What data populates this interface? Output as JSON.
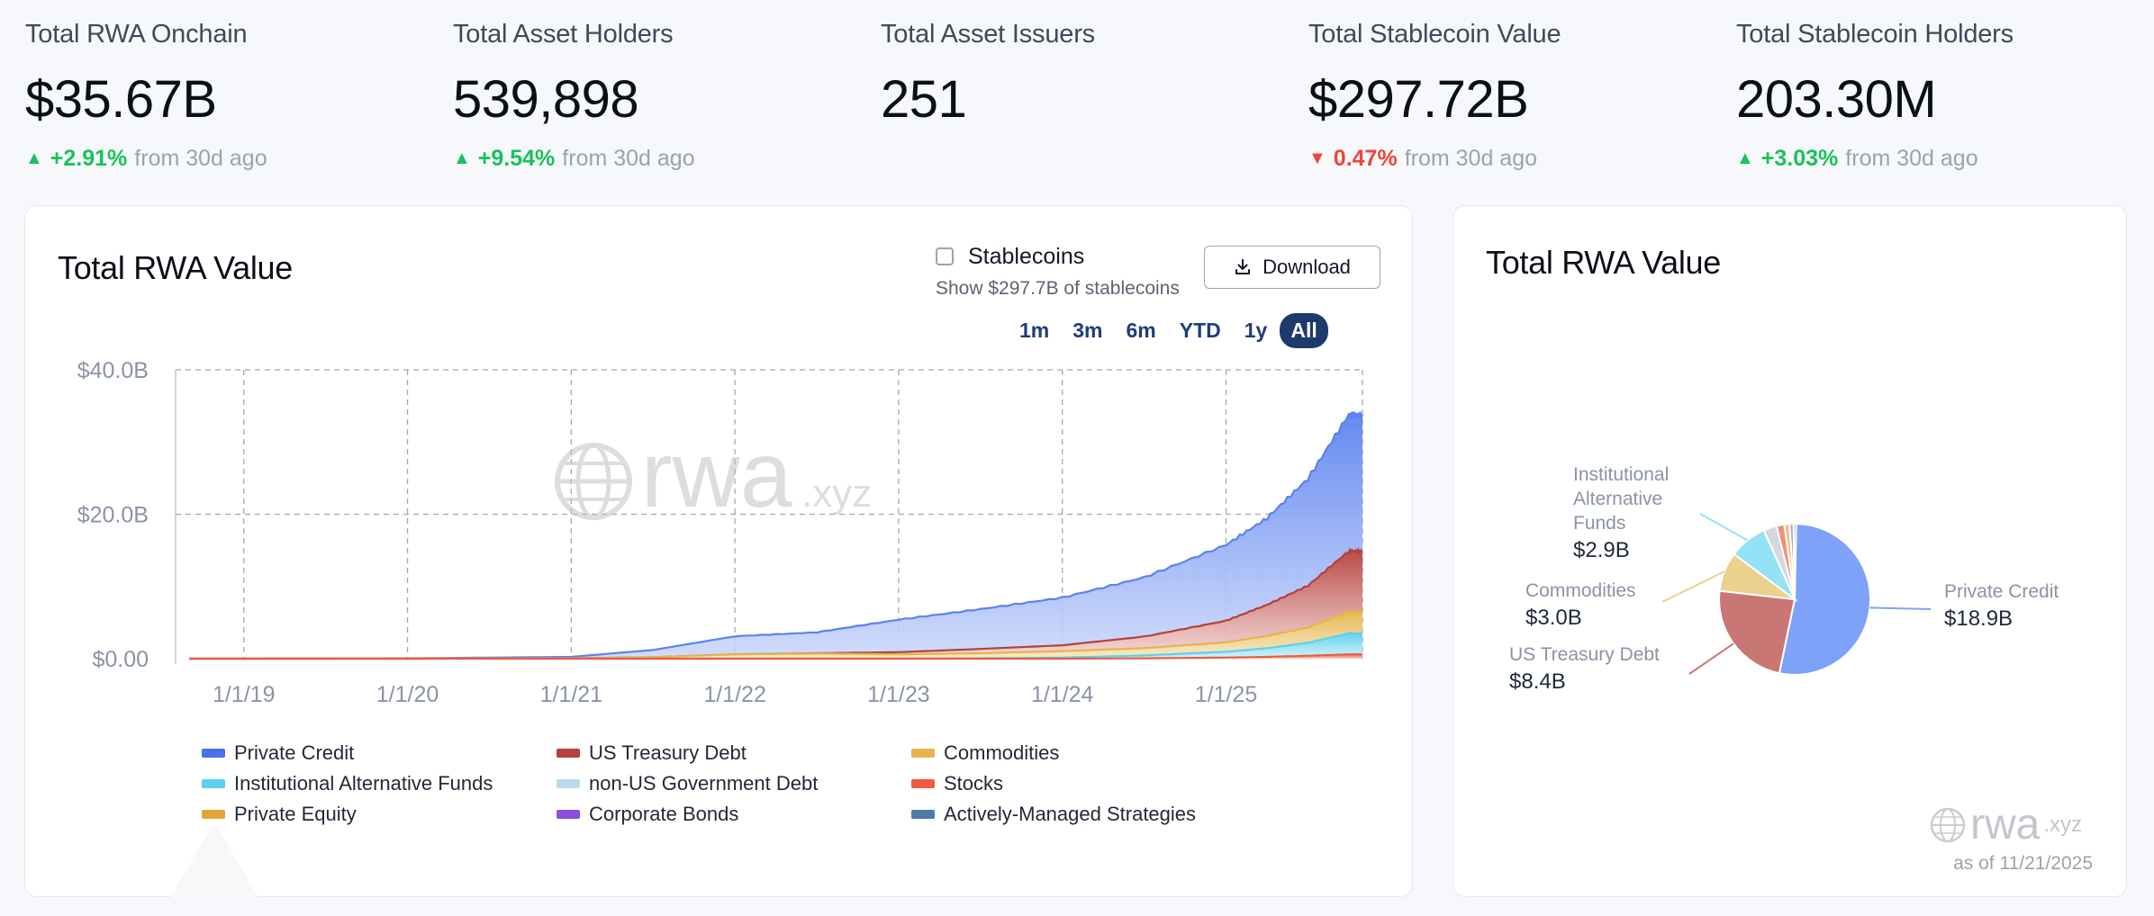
{
  "stats": [
    {
      "label": "Total RWA Onchain",
      "value": "$35.67B",
      "direction": "up",
      "change": "+2.91%",
      "suffix": "from 30d ago"
    },
    {
      "label": "Total Asset Holders",
      "value": "539,898",
      "direction": "up",
      "change": "+9.54%",
      "suffix": "from 30d ago"
    },
    {
      "label": "Total Asset Issuers",
      "value": "251",
      "direction": "",
      "change": "",
      "suffix": ""
    },
    {
      "label": "Total Stablecoin Value",
      "value": "$297.72B",
      "direction": "down",
      "change": "0.47%",
      "suffix": "from 30d ago"
    },
    {
      "label": "Total Stablecoin Holders",
      "value": "203.30M",
      "direction": "up",
      "change": "+3.03%",
      "suffix": "from 30d ago"
    }
  ],
  "colors": {
    "up": "#19c25a",
    "down": "#f04438",
    "accent": "#1e3a6d"
  },
  "main_card": {
    "title": "Total RWA Value",
    "stablecoins_label": "Stablecoins",
    "stablecoins_sub": "Show $297.7B of stablecoins",
    "stablecoins_checked": false,
    "download_label": "Download",
    "ranges": [
      "1m",
      "3m",
      "6m",
      "YTD",
      "1y",
      "All"
    ],
    "active_range": "All",
    "watermark": {
      "brand": "rwa",
      "domain": ".xyz"
    }
  },
  "pie_card": {
    "title": "Total RWA Value",
    "as_of": "as of 11/21/2025",
    "watermark": {
      "brand": "rwa",
      "domain": ".xyz"
    }
  },
  "legend": [
    {
      "name": "Private Credit",
      "color": "#4a72e8"
    },
    {
      "name": "US Treasury Debt",
      "color": "#b5403c"
    },
    {
      "name": "Commodities",
      "color": "#e6b44a"
    },
    {
      "name": "Institutional Alternative Funds",
      "color": "#5bd0ef"
    },
    {
      "name": "non-US Government Debt",
      "color": "#b9dbea"
    },
    {
      "name": "Stocks",
      "color": "#ef5b3f"
    },
    {
      "name": "Private Equity",
      "color": "#e1a43a"
    },
    {
      "name": "Corporate Bonds",
      "color": "#8a4ee0"
    },
    {
      "name": "Actively-Managed Strategies",
      "color": "#4f7aa6"
    }
  ],
  "chart_data": [
    {
      "type": "area",
      "title": "Total RWA Value",
      "x_ticks": [
        "1/1/19",
        "1/1/20",
        "1/1/21",
        "1/1/22",
        "1/1/23",
        "1/1/24",
        "1/1/25"
      ],
      "y_ticks": [
        "$0.00",
        "$20.0B",
        "$40.0B"
      ],
      "ylim": [
        0,
        40
      ],
      "xlim": [
        "2018-08",
        "2025-11"
      ],
      "grid": true,
      "stacked": true,
      "x": [
        "2018-09",
        "2019-01",
        "2020-01",
        "2021-01",
        "2021-07",
        "2022-01",
        "2022-07",
        "2023-01",
        "2023-07",
        "2024-01",
        "2024-07",
        "2025-01",
        "2025-04",
        "2025-07",
        "2025-10",
        "2025-11"
      ],
      "series": [
        {
          "name": "Stocks",
          "values": [
            0,
            0,
            0,
            0,
            0,
            0,
            0,
            0,
            0,
            0,
            0.05,
            0.15,
            0.25,
            0.4,
            0.6,
            0.6
          ]
        },
        {
          "name": "Institutional Alternative Funds",
          "values": [
            0,
            0,
            0,
            0,
            0,
            0,
            0,
            0,
            0.05,
            0.15,
            0.4,
            0.8,
            1.2,
            1.8,
            2.9,
            2.9
          ]
        },
        {
          "name": "Commodities",
          "values": [
            0,
            0,
            0,
            0.05,
            0.2,
            0.6,
            0.7,
            0.6,
            0.7,
            0.9,
            1.0,
            1.3,
            1.7,
            2.1,
            3.0,
            3.0
          ]
        },
        {
          "name": "US Treasury Debt",
          "values": [
            0,
            0,
            0,
            0,
            0,
            0,
            0.05,
            0.3,
            0.6,
            0.8,
            1.6,
            3.0,
            4.3,
            5.8,
            8.4,
            8.4
          ]
        },
        {
          "name": "Private Credit",
          "values": [
            0,
            0,
            0.05,
            0.2,
            1.0,
            2.5,
            2.9,
            4.5,
            5.5,
            6.6,
            8.2,
            10.5,
            12.0,
            14.8,
            18.9,
            18.9
          ]
        }
      ],
      "total_end": 35.67
    },
    {
      "type": "pie",
      "title": "Total RWA Value",
      "slices": [
        {
          "name": "Private Credit",
          "value": 18.9,
          "label": "$18.9B",
          "color": "#7ea2f7"
        },
        {
          "name": "US Treasury Debt",
          "value": 8.4,
          "label": "$8.4B",
          "color": "#c97774"
        },
        {
          "name": "Commodities",
          "value": 3.0,
          "label": "$3.0B",
          "color": "#ebd08e"
        },
        {
          "name": "Institutional Alternative Funds",
          "value": 2.9,
          "label": "$2.9B",
          "color": "#94e2f6"
        },
        {
          "name": "non-US Government Debt",
          "value": 1.0,
          "color": "#d5d8de"
        },
        {
          "name": "Stocks",
          "value": 0.6,
          "color": "#f08f7a"
        },
        {
          "name": "Private Equity",
          "value": 0.4,
          "color": "#efc47a"
        },
        {
          "name": "Corporate Bonds",
          "value": 0.3,
          "color": "#b69bea"
        },
        {
          "name": "Actively-Managed Strategies",
          "value": 0.2,
          "color": "#8aa6c4"
        }
      ],
      "labeled": [
        {
          "name_lines": [
            "Private Credit"
          ],
          "label": "$18.9B"
        },
        {
          "name_lines": [
            "US Treasury Debt"
          ],
          "label": "$8.4B"
        },
        {
          "name_lines": [
            "Commodities"
          ],
          "label": "$3.0B"
        },
        {
          "name_lines": [
            "Institutional",
            "Alternative",
            "Funds"
          ],
          "label": "$2.9B"
        }
      ]
    }
  ]
}
